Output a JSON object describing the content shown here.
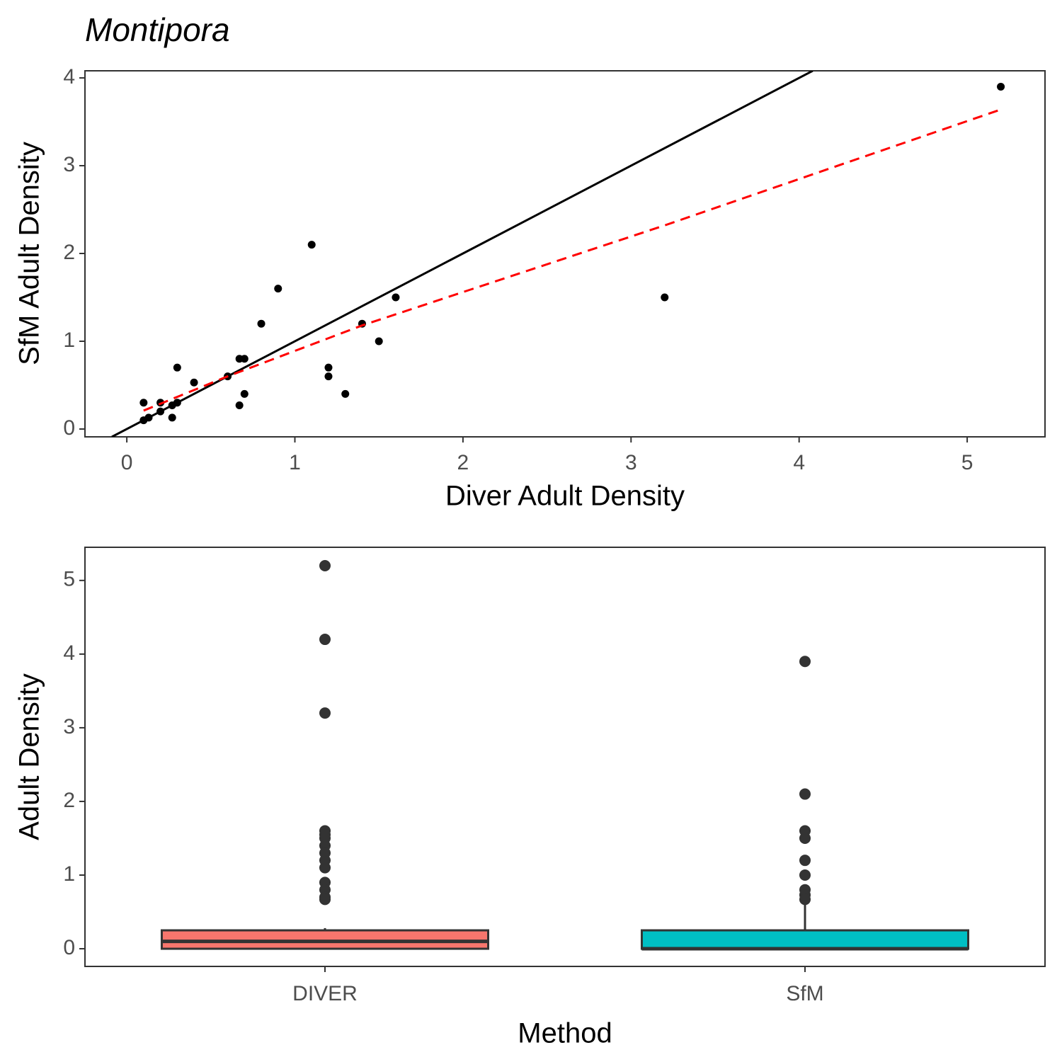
{
  "chart_data": [
    {
      "type": "scatter",
      "title": "Montipora",
      "x_label": "Diver Adult Density",
      "y_label": "SfM Adult Density",
      "xlim": [
        -0.249,
        5.463
      ],
      "ylim": [
        -0.089,
        4.081
      ],
      "xticks": [
        0,
        1,
        2,
        3,
        4,
        5
      ],
      "yticks": [
        0,
        1,
        2,
        3,
        4
      ],
      "series": [
        {
          "mark": "point",
          "color": "#000000",
          "x": [
            0.1,
            0.1,
            0.13,
            0.2,
            0.2,
            0.27,
            0.27,
            0.3,
            0.3,
            0.4,
            0.6,
            0.67,
            0.67,
            0.7,
            0.7,
            0.8,
            0.9,
            1.1,
            1.2,
            1.2,
            1.3,
            1.4,
            1.5,
            1.6,
            3.2,
            5.2
          ],
          "values": [
            0.3,
            0.1,
            0.13,
            0.3,
            0.2,
            0.27,
            0.13,
            0.3,
            0.7,
            0.53,
            0.6,
            0.8,
            0.27,
            0.8,
            0.4,
            1.2,
            1.6,
            2.1,
            0.7,
            0.6,
            0.4,
            1.2,
            1.0,
            1.5,
            1.5,
            3.9
          ]
        },
        {
          "mark": "line",
          "color": "#000000",
          "dashed": false,
          "x": [
            -0.089,
            4.081
          ],
          "values": [
            -0.089,
            4.081
          ]
        },
        {
          "mark": "line",
          "color": "#ff0000",
          "dashed": true,
          "x": [
            0.1,
            0.6,
            1.4,
            3.2,
            5.2
          ],
          "values": [
            0.21,
            0.6,
            1.18,
            2.32,
            3.64
          ]
        }
      ]
    },
    {
      "type": "box",
      "x_label": "Method",
      "y_label": "Adult Density",
      "categories": [
        "DIVER",
        "SfM"
      ],
      "colors": [
        "#F8766D",
        "#00BFC4"
      ],
      "ylim": [
        -0.24,
        5.45
      ],
      "yticks": [
        0,
        1,
        2,
        3,
        4,
        5
      ],
      "boxes": [
        {
          "low": 0,
          "q1": 0,
          "median": 0.1,
          "q3": 0.25,
          "high": 0.28,
          "outliers": [
            5.2,
            4.2,
            3.2,
            1.6,
            1.55,
            1.5,
            1.4,
            1.3,
            1.2,
            1.1,
            0.9,
            0.8,
            0.7,
            0.67
          ]
        },
        {
          "low": 0,
          "q1": 0,
          "median": 0,
          "q3": 0.25,
          "high": 0.6,
          "outliers": [
            3.9,
            2.1,
            1.6,
            1.5,
            1.2,
            1.0,
            0.8,
            0.73,
            0.67
          ]
        }
      ]
    }
  ]
}
